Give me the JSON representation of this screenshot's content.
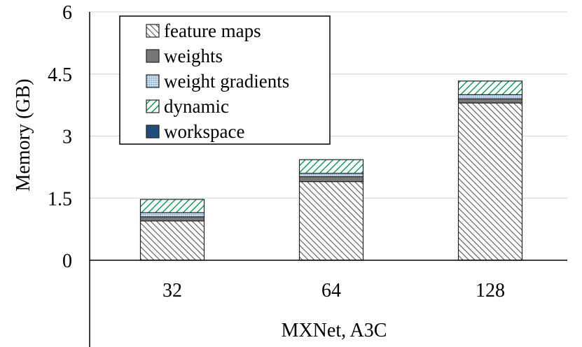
{
  "chart_data": {
    "type": "bar",
    "stacked": true,
    "categories": [
      "32",
      "64",
      "128"
    ],
    "group_label": "MXNet, A3C",
    "ylabel": "Memory (GB)",
    "xlabel": "",
    "ylim": [
      0,
      6
    ],
    "yticks": [
      "0",
      "1.5",
      "3",
      "4.5",
      "6"
    ],
    "ytick_values": [
      0,
      1.5,
      3,
      4.5,
      6
    ],
    "grid": true,
    "legend_position": "top-left",
    "series": [
      {
        "name": "feature maps",
        "values": [
          0.95,
          1.9,
          3.8
        ],
        "color": "#555555",
        "pattern": "diagonal-hatch"
      },
      {
        "name": "weights",
        "values": [
          0.1,
          0.12,
          0.1
        ],
        "color": "#777777",
        "pattern": "solid"
      },
      {
        "name": "weight gradients",
        "values": [
          0.1,
          0.08,
          0.1
        ],
        "color": "#a9c9e8",
        "pattern": "dotted"
      },
      {
        "name": "dynamic",
        "values": [
          0.32,
          0.33,
          0.33
        ],
        "color": "#1a9a5a",
        "pattern": "green-hatch"
      },
      {
        "name": "workspace",
        "values": [
          0.0,
          0.0,
          0.0
        ],
        "color": "#1f4e79",
        "pattern": "solid"
      }
    ]
  }
}
